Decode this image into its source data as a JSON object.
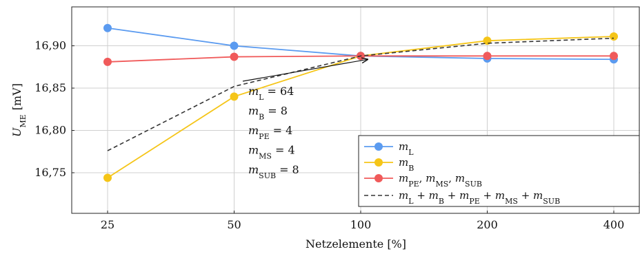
{
  "chart_data": {
    "type": "line",
    "xlabel": "Netzelemente [%]",
    "ylabel": "U_ME [mV]",
    "ylabel_main": "U",
    "ylabel_sub": "ME",
    "ylabel_unit": "[mV]",
    "x": [
      25,
      50,
      100,
      200,
      400
    ],
    "x_tick_labels": [
      "25",
      "50",
      "100",
      "200",
      "400"
    ],
    "y_ticks": [
      16.75,
      16.8,
      16.85,
      16.9
    ],
    "y_tick_labels": [
      "16,75",
      "16,80",
      "16,85",
      "16,90"
    ],
    "ylim": [
      16.702,
      16.946
    ],
    "grid": true,
    "legend_position": "bottom-right",
    "series": [
      {
        "name": "m_L",
        "name_main": "m",
        "name_sub": "L",
        "color": "#5b9bf0",
        "marker": "circle",
        "dashed": false,
        "values": [
          16.921,
          16.9,
          16.888,
          16.885,
          16.884
        ]
      },
      {
        "name": "m_B",
        "name_main": "m",
        "name_sub": "B",
        "color": "#f5c518",
        "marker": "circle",
        "dashed": false,
        "values": [
          16.744,
          16.84,
          16.888,
          16.906,
          16.911
        ]
      },
      {
        "name": "m_PE, m_MS, m_SUB",
        "name_main": "m",
        "name_sub": "PE",
        "name_rest": ", m",
        "name_sub2": "MS",
        "name_rest2": ", m",
        "name_sub3": "SUB",
        "color": "#f05a5a",
        "marker": "circle",
        "dashed": false,
        "values": [
          16.881,
          16.887,
          16.888,
          16.888,
          16.888
        ]
      },
      {
        "name": "m_L + m_B + m_PE + m_MS + m_SUB",
        "color": "#333333",
        "marker": "none",
        "dashed": true,
        "values": [
          16.776,
          16.852,
          16.888,
          16.903,
          16.909
        ]
      }
    ],
    "annotation": {
      "lines": [
        {
          "var": "m",
          "sub": "L",
          "value": "= 64"
        },
        {
          "var": "m",
          "sub": "B",
          "value": "= 8"
        },
        {
          "var": "m",
          "sub": "PE",
          "value": "= 4"
        },
        {
          "var": "m",
          "sub": "MS",
          "value": "= 4"
        },
        {
          "var": "m",
          "sub": "SUB",
          "value": "= 8"
        }
      ],
      "arrow_target": {
        "x": 100,
        "y": 16.888
      }
    },
    "legend_combined": {
      "var": "m",
      "subs": [
        "L",
        "B",
        "PE",
        "MS",
        "SUB"
      ],
      "plus": "+"
    }
  }
}
